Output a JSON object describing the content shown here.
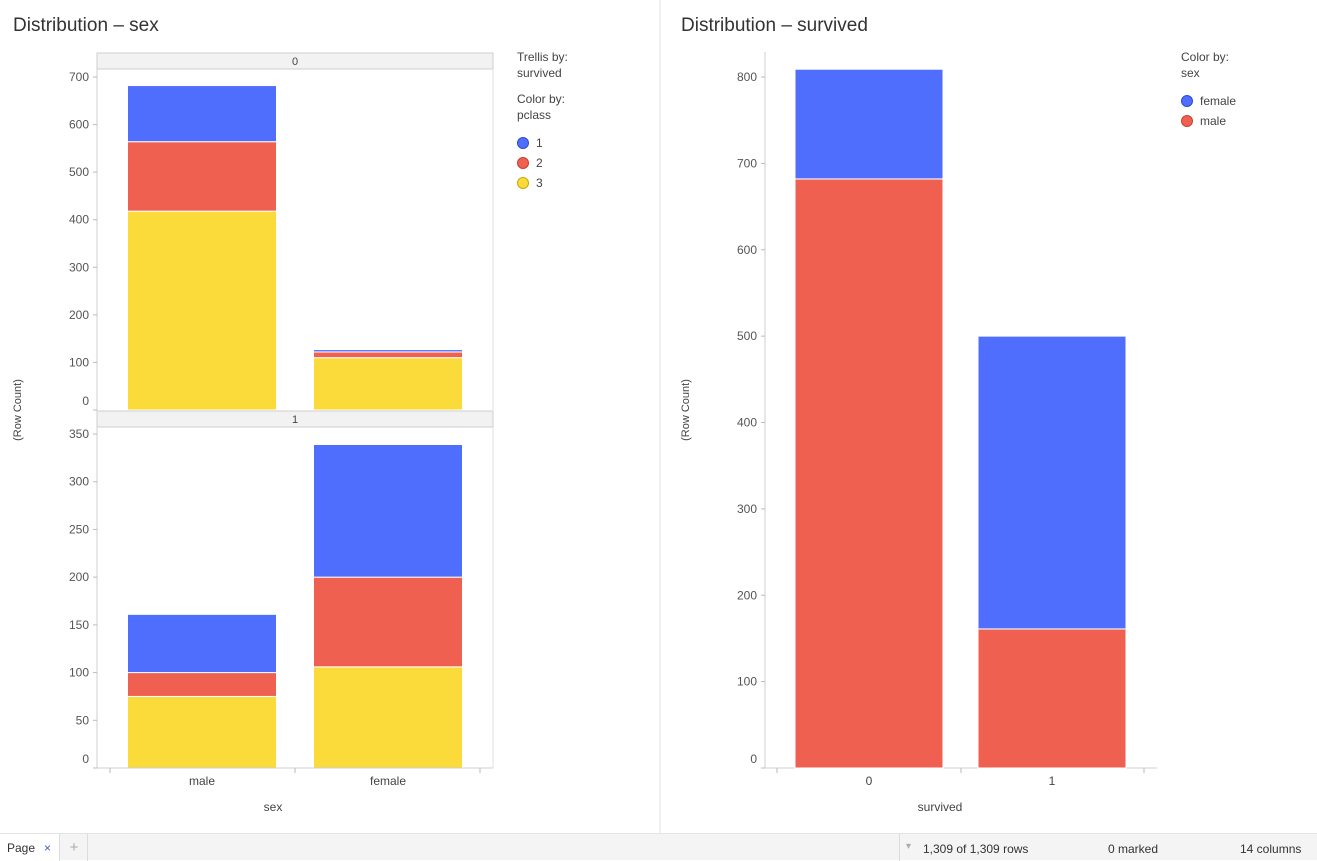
{
  "left": {
    "title": "Distribution – sex",
    "legend": {
      "trellis_label": "Trellis by:",
      "trellis_value": "survived",
      "color_label": "Color by:",
      "color_value": "pclass",
      "items": [
        {
          "label": "1",
          "color": "#4f6efd"
        },
        {
          "label": "2",
          "color": "#f06050"
        },
        {
          "label": "3",
          "color": "#fadb3a"
        }
      ]
    }
  },
  "right": {
    "title": "Distribution – survived",
    "legend": {
      "color_label": "Color by:",
      "color_value": "sex",
      "items": [
        {
          "label": "female",
          "color": "#4f6efd"
        },
        {
          "label": "male",
          "color": "#f06050"
        }
      ]
    }
  },
  "chart_data": [
    {
      "type": "bar",
      "stacked": true,
      "title": "Distribution – sex",
      "xlabel": "sex",
      "ylabel": "(Row Count)",
      "categories": [
        "male",
        "female"
      ],
      "trellis_by": "survived",
      "color_by": "pclass",
      "panels": [
        {
          "label": "0",
          "ylim": [
            0,
            700
          ],
          "yticks": [
            "0",
            "100",
            "200",
            "300",
            "400",
            "500",
            "600",
            "700"
          ],
          "series": [
            {
              "name": "3",
              "color": "#fadb3a",
              "values": [
                418,
                110
              ]
            },
            {
              "name": "2",
              "color": "#f06050",
              "values": [
                146,
                12
              ]
            },
            {
              "name": "1",
              "color": "#4f6efd",
              "values": [
                118,
                5
              ]
            }
          ]
        },
        {
          "label": "1",
          "ylim": [
            0,
            350
          ],
          "yticks": [
            "0",
            "50",
            "100",
            "150",
            "200",
            "250",
            "300",
            "350"
          ],
          "series": [
            {
              "name": "3",
              "color": "#fadb3a",
              "values": [
                75,
                106
              ]
            },
            {
              "name": "2",
              "color": "#f06050",
              "values": [
                25,
                94
              ]
            },
            {
              "name": "1",
              "color": "#4f6efd",
              "values": [
                61,
                139
              ]
            }
          ]
        }
      ]
    },
    {
      "type": "bar",
      "stacked": true,
      "title": "Distribution – survived",
      "xlabel": "survived",
      "ylabel": "(Row Count)",
      "categories": [
        "0",
        "1"
      ],
      "color_by": "sex",
      "ylim": [
        0,
        800
      ],
      "yticks": [
        "0",
        "100",
        "200",
        "300",
        "400",
        "500",
        "600",
        "700",
        "800"
      ],
      "series": [
        {
          "name": "male",
          "color": "#f06050",
          "values": [
            682,
            161
          ]
        },
        {
          "name": "female",
          "color": "#4f6efd",
          "values": [
            127,
            339
          ]
        }
      ]
    }
  ],
  "statusbar": {
    "page_tab": "Page",
    "close_glyph": "×",
    "add_glyph": "+",
    "dropdown_glyph": "▾",
    "rows": "1,309 of 1,309 rows",
    "marked": "0 marked",
    "columns": "14 columns"
  }
}
